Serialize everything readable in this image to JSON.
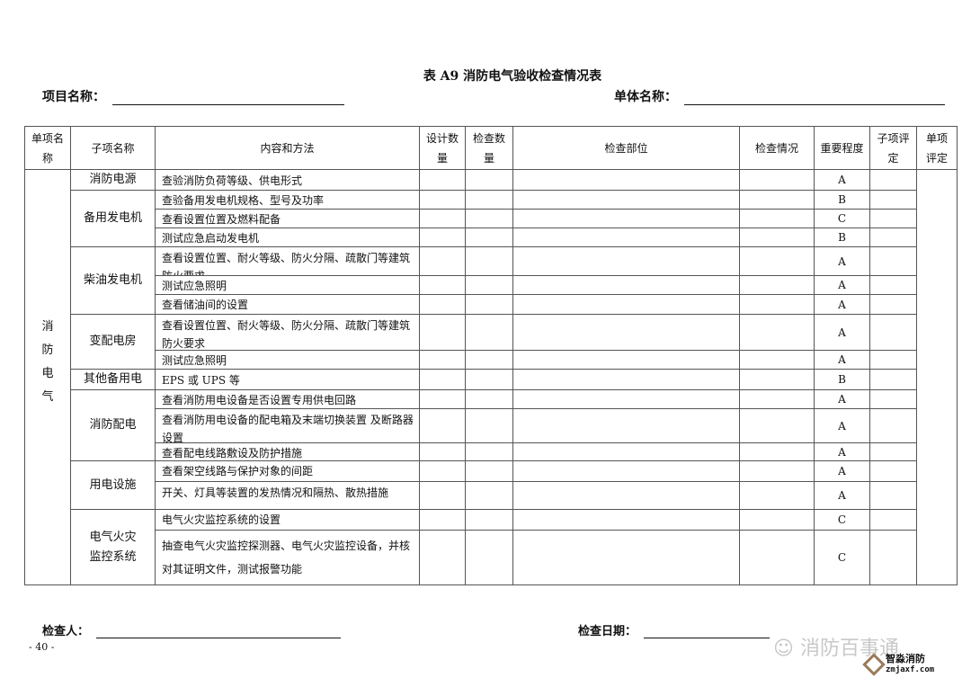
{
  "title": "表 A9 消防电气验收检查情况表",
  "project_label": "项目名称：",
  "unit_label": "单体名称：",
  "headers": [
    "单项名称",
    "子项名称",
    "内容和方法",
    "设计数量",
    "检查数量",
    "检查部位",
    "检查情况",
    "重要程度",
    "子项评定",
    "单项评定"
  ],
  "main_item": "消防电气",
  "groups": [
    {
      "name": "消防电源",
      "rows": [
        {
          "content": "查验消防负荷等级、供电形式",
          "level": "A"
        }
      ]
    },
    {
      "name": "备用发电机",
      "rows": [
        {
          "content": "查验备用发电机规格、型号及功率",
          "level": "B"
        },
        {
          "content": "查看设置位置及燃料配备",
          "level": "C"
        },
        {
          "content": "测试应急启动发电机",
          "level": "B"
        }
      ]
    },
    {
      "name": "柴油发电机",
      "rows": [
        {
          "content": "查看设置位置、耐火等级、防火分隔、疏散门等建筑防火要求",
          "level": "A"
        },
        {
          "content": "测试应急照明",
          "level": "A"
        },
        {
          "content": "查看储油间的设置",
          "level": "A"
        }
      ]
    },
    {
      "name": "变配电房",
      "rows": [
        {
          "content": "查看设置位置、耐火等级、防火分隔、疏散门等建筑防火要求",
          "level": "A"
        },
        {
          "content": "测试应急照明",
          "level": "A"
        }
      ]
    },
    {
      "name": "其他备用电",
      "rows": [
        {
          "content": "EPS 或 UPS 等",
          "level": "B"
        }
      ]
    },
    {
      "name": "消防配电",
      "rows": [
        {
          "content": "查看消防用电设备是否设置专用供电回路",
          "level": "A"
        },
        {
          "content": "查看消防用电设备的配电箱及末端切换装置 及断路器设置",
          "level": "A"
        },
        {
          "content": "查看配电线路敷设及防护措施",
          "level": "A"
        }
      ]
    },
    {
      "name": "用电设施",
      "rows": [
        {
          "content": "查看架空线路与保护对象的间距",
          "level": "A"
        },
        {
          "content": "开关、灯具等装置的发热情况和隔热、散热措施",
          "level": "A"
        }
      ]
    },
    {
      "name": "电气火灾监控系统",
      "rows": [
        {
          "content": "电气火灾监控系统的设置",
          "level": "C"
        },
        {
          "content": "抽查电气火灾监控探测器、电气火灾监控设备，并核对其证明文件，测试报警功能",
          "level": "C"
        }
      ]
    }
  ],
  "inspector_label": "检查人：",
  "date_label": "检查日期：",
  "page_number": "- 40 -",
  "watermark": "消防百事通",
  "logo": {
    "name": "智淼消防",
    "url": "zmjaxf.com"
  }
}
